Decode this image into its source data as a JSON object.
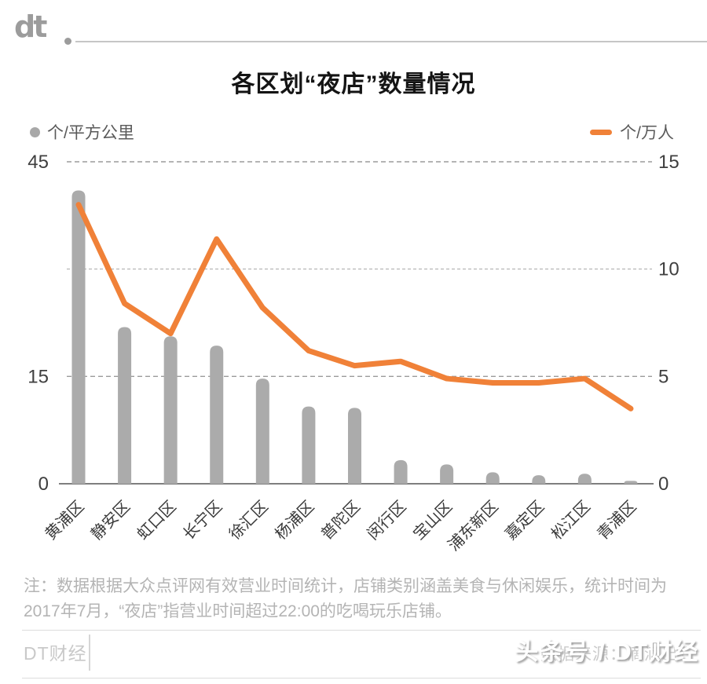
{
  "logo": {
    "text": "dt"
  },
  "header": {
    "title": "各区划“夜店”数量情况"
  },
  "legend": {
    "left": {
      "label": "个/平方公里",
      "color": "#A8A8A8"
    },
    "right": {
      "label": "个/万人",
      "color": "#F08138"
    }
  },
  "chart_data": {
    "type": "combo",
    "title": "各区划“夜店”数量情况",
    "categories": [
      "黄浦区",
      "静安区",
      "虹口区",
      "长宁区",
      "徐汇区",
      "杨浦区",
      "普陀区",
      "闵行区",
      "宝山区",
      "浦东新区",
      "嘉定区",
      "松江区",
      "青浦区"
    ],
    "series": [
      {
        "name": "个/平方公里",
        "type": "bar",
        "axis": "left",
        "color": "#ABABAB",
        "values": [
          41,
          21.9,
          20.6,
          19.3,
          14.7,
          10.8,
          10.6,
          3.3,
          2.7,
          1.6,
          1.2,
          1.4,
          0.4
        ]
      },
      {
        "name": "个/万人",
        "type": "line",
        "axis": "right",
        "color": "#F08138",
        "values": [
          13,
          8.4,
          7,
          11.4,
          8.2,
          6.2,
          5.5,
          5.7,
          4.9,
          4.7,
          4.7,
          4.9,
          3.5
        ]
      }
    ],
    "left_axis": {
      "min": 0,
      "max": 45,
      "tick_labels": [
        45,
        15,
        0
      ],
      "unit": "个/平方公里"
    },
    "right_axis": {
      "min": 0,
      "max": 15,
      "tick_labels": [
        15,
        10,
        5,
        0
      ],
      "unit": "个/万人"
    },
    "gridlines_at_left_values": [
      45,
      30,
      15
    ],
    "grid_style": "dashed horizontal",
    "legend_position": "top"
  },
  "note": {
    "line1": "注：数据根据大众点评网有效营业时间统计，店铺类别涵盖美食与休闲娱乐，统计时间为",
    "line2": "2017年7月，“夜店”指营业时间超过22:00的吃喝玩乐店铺。"
  },
  "footer": {
    "brand": "DT财经",
    "source_watermark": "数据来源：滴滴出行",
    "overlay_watermark": "头条号 / DT财经"
  }
}
